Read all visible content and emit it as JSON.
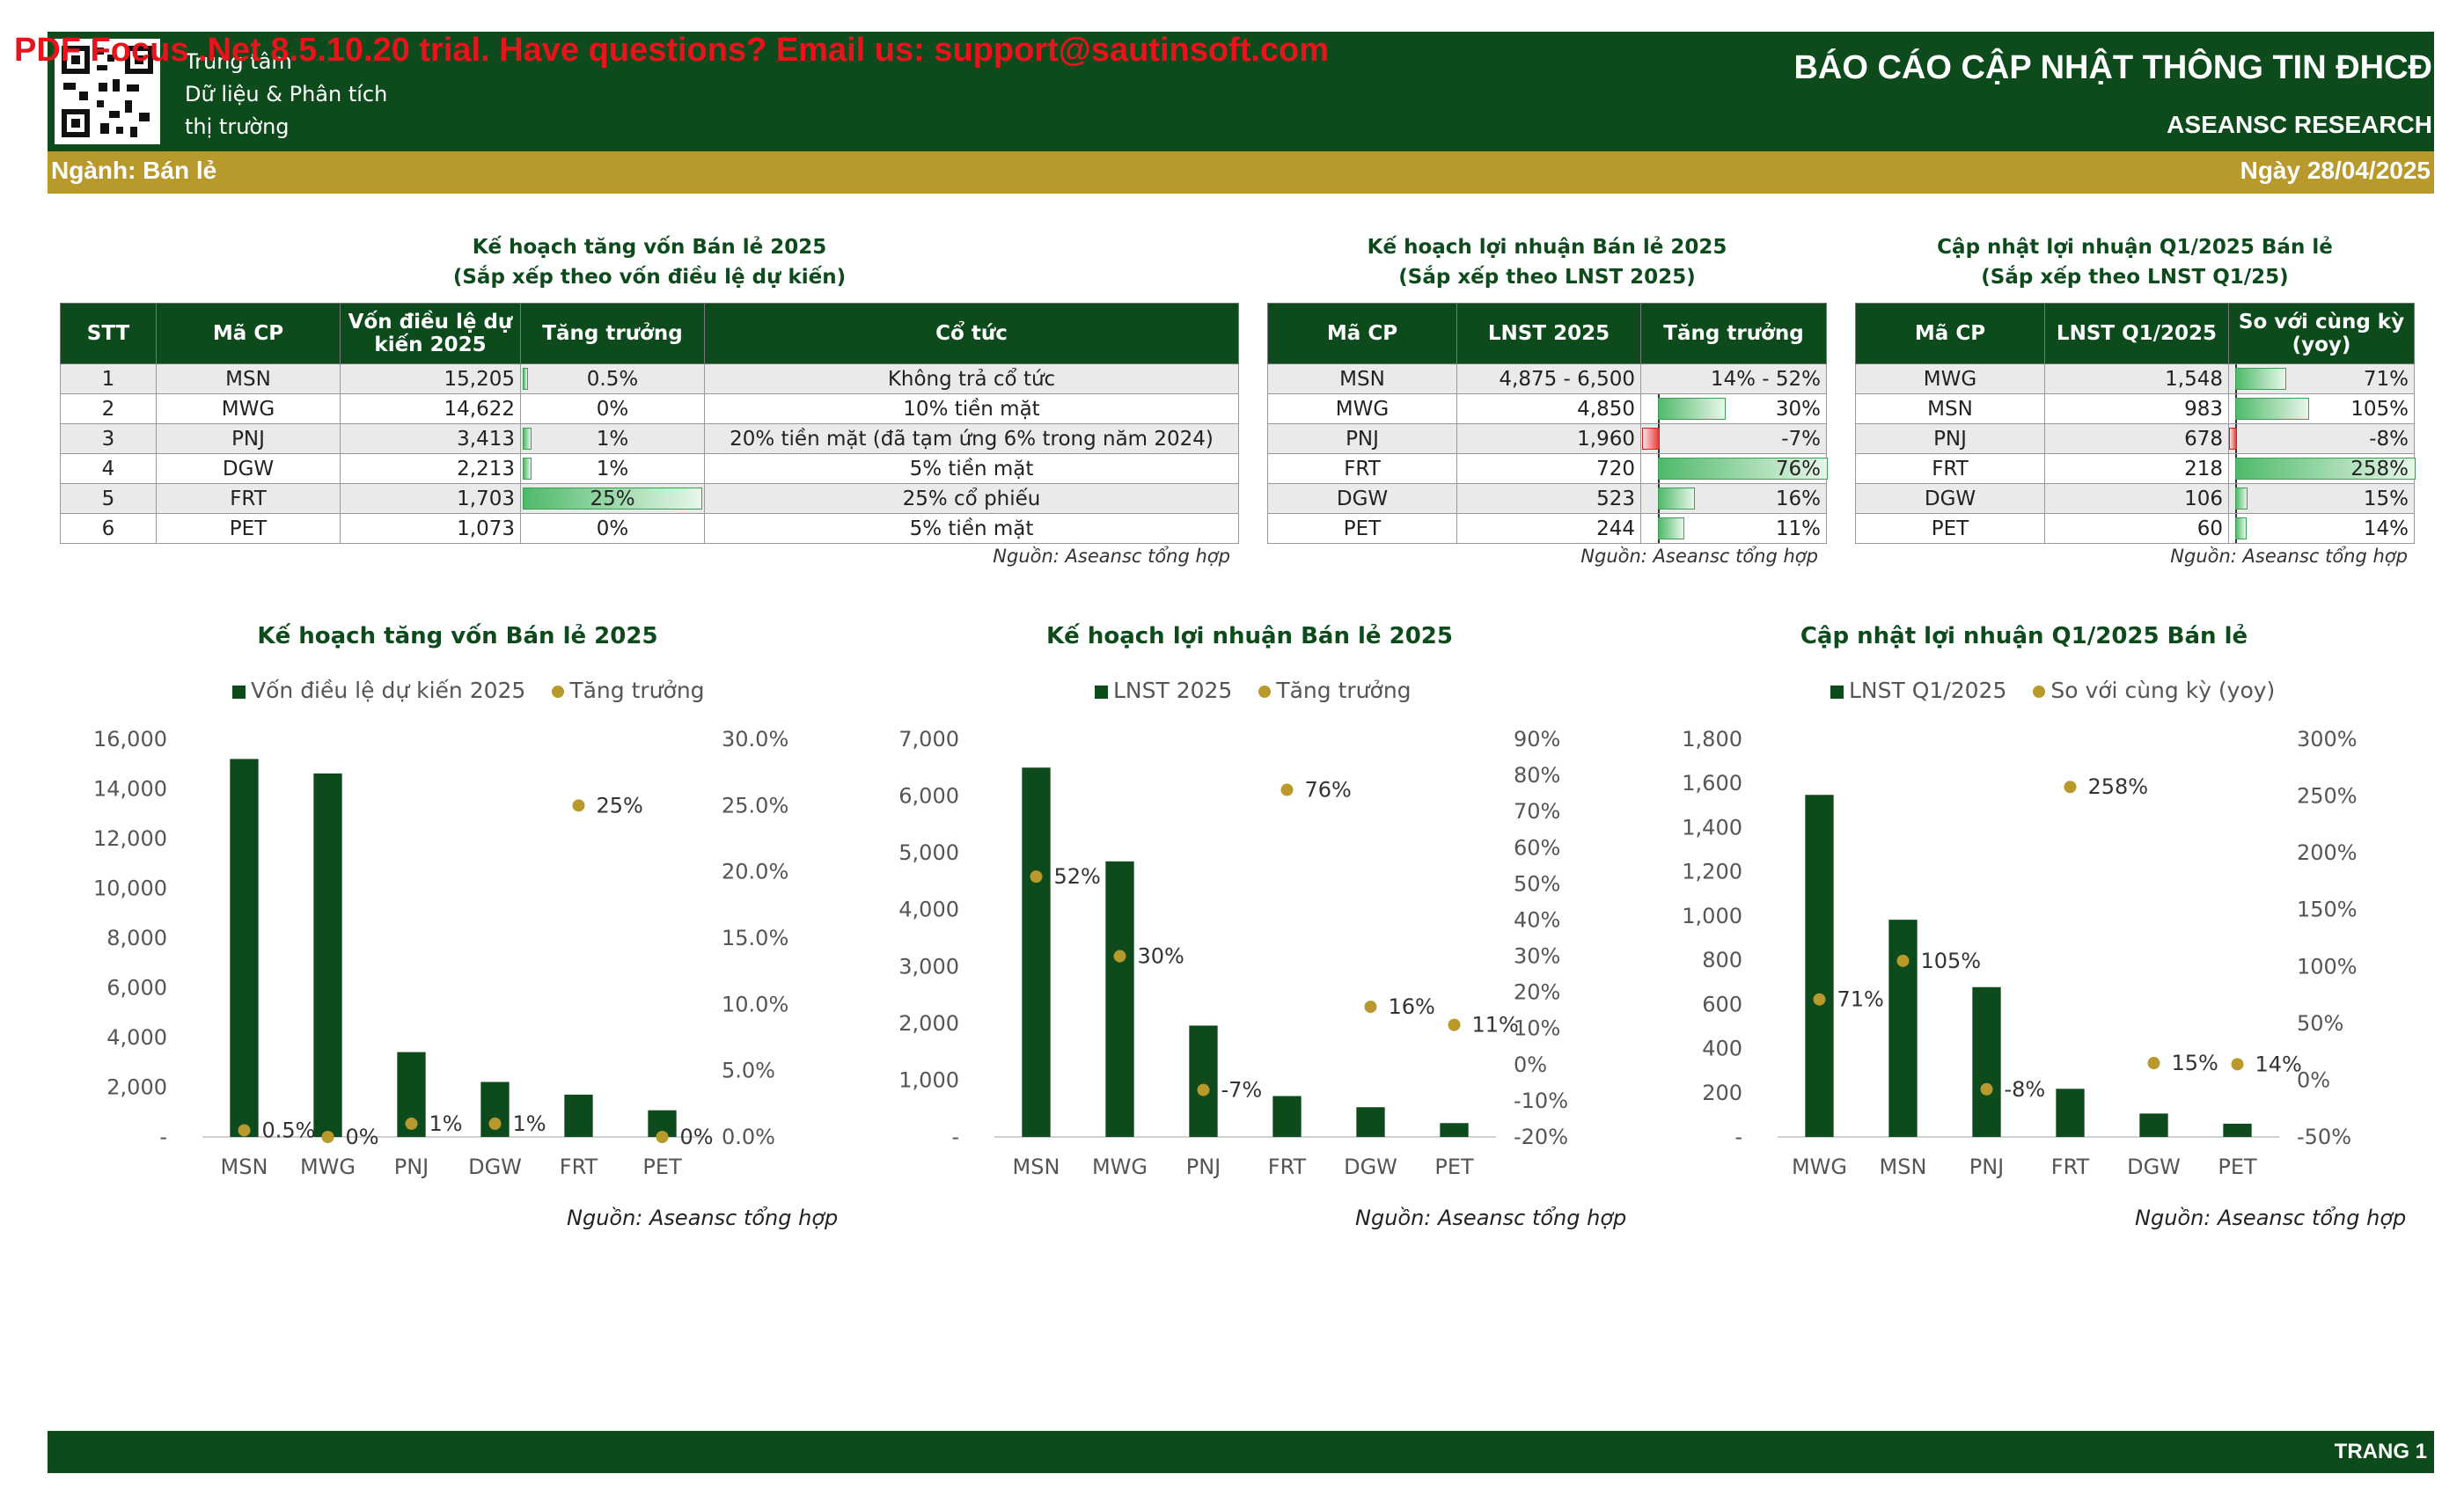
{
  "watermark": "PDF Focus .Net 8.5.10.20 trial. Have questions? Email us: support@sautinsoft.com",
  "header": {
    "org_line1": "Trung tâm",
    "org_line2": "Dữ liệu & Phân tích",
    "org_line3": "thị trường",
    "title": "BÁO CÁO CẬP NHẬT THÔNG TIN ĐHCĐ",
    "subtitle": "ASEANSC RESEARCH",
    "sector": "Ngành: Bán lẻ",
    "date": "Ngày 28/04/2025"
  },
  "footer": {
    "page": "TRANG 1"
  },
  "source_text": "Nguồn: Aseansc tổng hợp",
  "table1": {
    "title": "Kế hoạch tăng vốn Bán lẻ 2025",
    "subtitle": "(Sắp xếp theo vốn điều lệ dự kiến)",
    "headers": [
      "STT",
      "Mã CP",
      "Vốn điều lệ dự kiến 2025",
      "Tăng trưởng",
      "Cổ tức"
    ],
    "rows": [
      {
        "stt": "1",
        "code": "MSN",
        "capital": "15,205",
        "growth": "0.5%",
        "growth_pct": 0.5,
        "dividend": "Không trả cổ tức"
      },
      {
        "stt": "2",
        "code": "MWG",
        "capital": "14,622",
        "growth": "0%",
        "growth_pct": 0,
        "dividend": "10% tiền mặt"
      },
      {
        "stt": "3",
        "code": "PNJ",
        "capital": "3,413",
        "growth": "1%",
        "growth_pct": 1,
        "dividend": "20% tiền mặt (đã tạm ứng 6% trong năm 2024)"
      },
      {
        "stt": "4",
        "code": "DGW",
        "capital": "2,213",
        "growth": "1%",
        "growth_pct": 1,
        "dividend": "5% tiền mặt"
      },
      {
        "stt": "5",
        "code": "FRT",
        "capital": "1,703",
        "growth": "25%",
        "growth_pct": 25,
        "dividend": "25% cổ phiếu"
      },
      {
        "stt": "6",
        "code": "PET",
        "capital": "1,073",
        "growth": "0%",
        "growth_pct": 0,
        "dividend": "5% tiền mặt"
      }
    ]
  },
  "table2": {
    "title": "Kế hoạch lợi nhuận Bán lẻ 2025",
    "subtitle": "(Sắp xếp theo LNST 2025)",
    "headers": [
      "Mã CP",
      "LNST 2025",
      "Tăng trưởng"
    ],
    "rows": [
      {
        "code": "MSN",
        "profit": "4,875 - 6,500",
        "growth": "14% - 52%",
        "growth_pct": null
      },
      {
        "code": "MWG",
        "profit": "4,850",
        "growth": "30%",
        "growth_pct": 30
      },
      {
        "code": "PNJ",
        "profit": "1,960",
        "growth": "-7%",
        "growth_pct": -7
      },
      {
        "code": "FRT",
        "profit": "720",
        "growth": "76%",
        "growth_pct": 76
      },
      {
        "code": "DGW",
        "profit": "523",
        "growth": "16%",
        "growth_pct": 16
      },
      {
        "code": "PET",
        "profit": "244",
        "growth": "11%",
        "growth_pct": 11
      }
    ]
  },
  "table3": {
    "title": "Cập nhật lợi nhuận Q1/2025 Bán lẻ",
    "subtitle": "(Sắp xếp theo LNST Q1/25)",
    "headers": [
      "Mã CP",
      "LNST Q1/2025",
      "So với cùng kỳ (yoy)"
    ],
    "rows": [
      {
        "code": "MWG",
        "profit": "1,548",
        "growth": "71%",
        "growth_pct": 71
      },
      {
        "code": "MSN",
        "profit": "983",
        "growth": "105%",
        "growth_pct": 105
      },
      {
        "code": "PNJ",
        "profit": "678",
        "growth": "-8%",
        "growth_pct": -8
      },
      {
        "code": "FRT",
        "profit": "218",
        "growth": "258%",
        "growth_pct": 258
      },
      {
        "code": "DGW",
        "profit": "106",
        "growth": "15%",
        "growth_pct": 15
      },
      {
        "code": "PET",
        "profit": "60",
        "growth": "14%",
        "growth_pct": 14
      }
    ]
  },
  "chart_data": [
    {
      "type": "bar",
      "title": "Kế hoạch tăng vốn Bán lẻ 2025",
      "categories": [
        "MSN",
        "MWG",
        "PNJ",
        "DGW",
        "FRT",
        "PET"
      ],
      "series": [
        {
          "name": "Vốn điều lệ dự kiến 2025",
          "kind": "bar",
          "axis": "left",
          "values": [
            15205,
            14622,
            3413,
            2213,
            1703,
            1073
          ]
        },
        {
          "name": "Tăng trưởng",
          "kind": "scatter",
          "axis": "right",
          "values": [
            0.5,
            0,
            1,
            1,
            25,
            0
          ],
          "labels": [
            "0.5%",
            "0%",
            "1%",
            "1%",
            "25%",
            "0%"
          ]
        }
      ],
      "ylim": [
        0,
        16000
      ],
      "yticks": [
        "-",
        "2,000",
        "4,000",
        "6,000",
        "8,000",
        "10,000",
        "12,000",
        "14,000",
        "16,000"
      ],
      "y2lim": [
        0,
        30
      ],
      "y2ticks": [
        "0.0%",
        "5.0%",
        "10.0%",
        "15.0%",
        "20.0%",
        "25.0%",
        "30.0%"
      ],
      "legend": "top",
      "grid": false,
      "colors": {
        "bar": "#0d4a1c",
        "dot": "#b8992c"
      }
    },
    {
      "type": "bar",
      "title": "Kế hoạch lợi nhuận Bán lẻ 2025",
      "categories": [
        "MSN",
        "MWG",
        "PNJ",
        "FRT",
        "DGW",
        "PET"
      ],
      "series": [
        {
          "name": "LNST 2025",
          "kind": "bar",
          "axis": "left",
          "values": [
            6500,
            4850,
            1960,
            720,
            523,
            244
          ]
        },
        {
          "name": "Tăng trưởng",
          "kind": "scatter",
          "axis": "right",
          "values": [
            52,
            30,
            -7,
            76,
            16,
            11
          ],
          "labels": [
            "52%",
            "30%",
            "-7%",
            "76%",
            "16%",
            "11%"
          ]
        }
      ],
      "ylim": [
        0,
        7000
      ],
      "yticks": [
        "-",
        "1,000",
        "2,000",
        "3,000",
        "4,000",
        "5,000",
        "6,000",
        "7,000"
      ],
      "y2lim": [
        -20,
        90
      ],
      "y2ticks": [
        "-20%",
        "-10%",
        "0%",
        "10%",
        "20%",
        "30%",
        "40%",
        "50%",
        "60%",
        "70%",
        "80%",
        "90%"
      ],
      "legend": "top",
      "grid": false,
      "colors": {
        "bar": "#0d4a1c",
        "dot": "#b8992c"
      }
    },
    {
      "type": "bar",
      "title": "Cập nhật lợi nhuận Q1/2025 Bán lẻ",
      "categories": [
        "MWG",
        "MSN",
        "PNJ",
        "FRT",
        "DGW",
        "PET"
      ],
      "series": [
        {
          "name": "LNST Q1/2025",
          "kind": "bar",
          "axis": "left",
          "values": [
            1548,
            983,
            678,
            218,
            106,
            60
          ]
        },
        {
          "name": "So với cùng kỳ (yoy)",
          "kind": "scatter",
          "axis": "right",
          "values": [
            71,
            105,
            -8,
            258,
            15,
            14
          ],
          "labels": [
            "71%",
            "105%",
            "-8%",
            "258%",
            "15%",
            "14%"
          ]
        }
      ],
      "ylim": [
        0,
        1800
      ],
      "yticks": [
        "-",
        "200",
        "400",
        "600",
        "800",
        "1,000",
        "1,200",
        "1,400",
        "1,600",
        "1,800"
      ],
      "y2lim": [
        -50,
        300
      ],
      "y2ticks": [
        "-50%",
        "0%",
        "50%",
        "100%",
        "150%",
        "200%",
        "250%",
        "300%"
      ],
      "legend": "top",
      "grid": false,
      "colors": {
        "bar": "#0d4a1c",
        "dot": "#b8992c"
      }
    }
  ]
}
